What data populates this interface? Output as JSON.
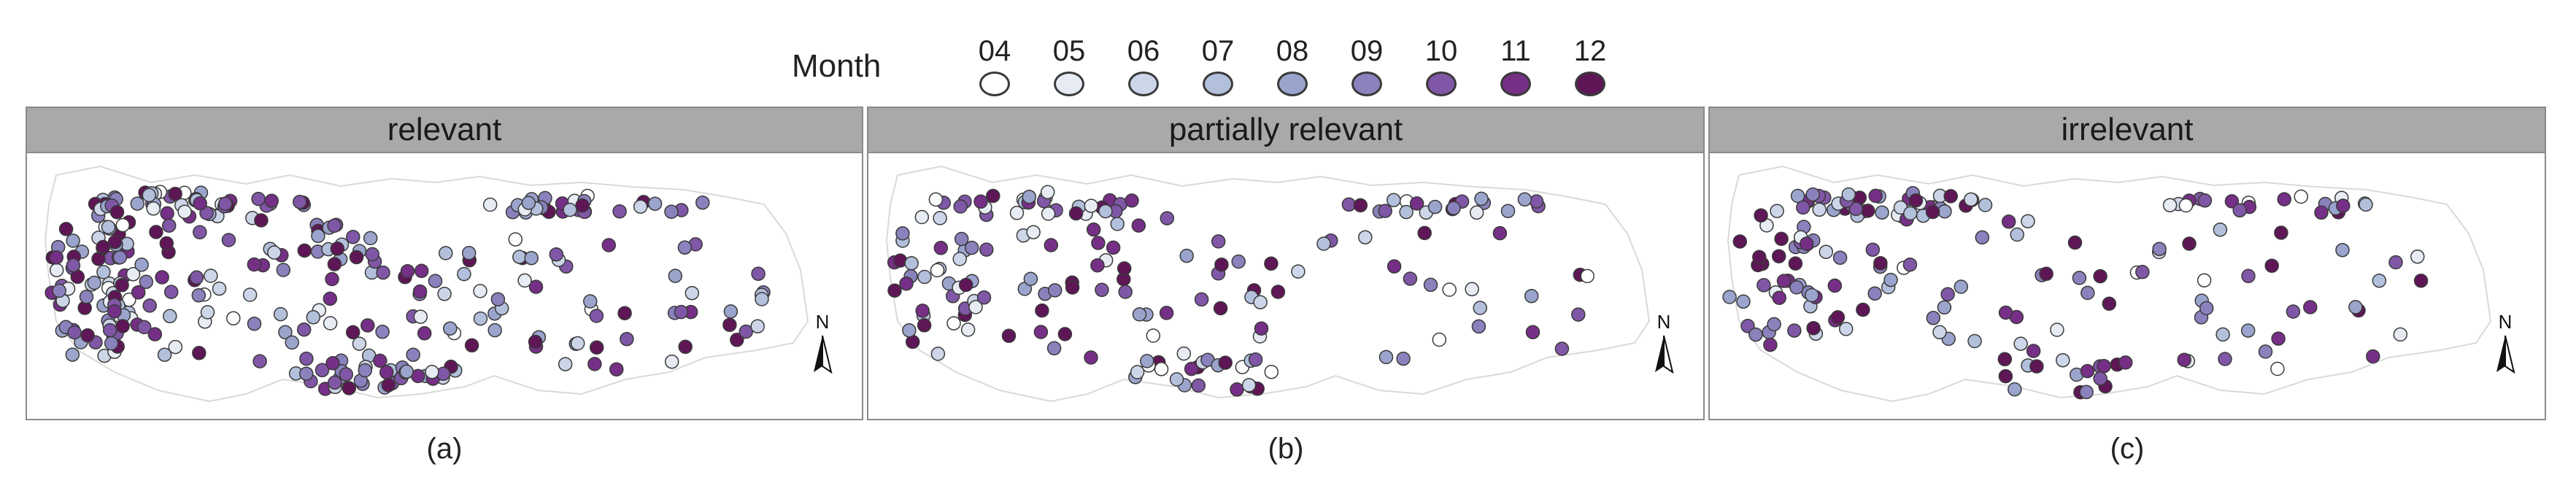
{
  "legend": {
    "title": "Month",
    "items": [
      {
        "label": "04",
        "color": "#ffffff"
      },
      {
        "label": "05",
        "color": "#e7ecf4"
      },
      {
        "label": "06",
        "color": "#cdd6e8"
      },
      {
        "label": "07",
        "color": "#b3c0dc"
      },
      {
        "label": "08",
        "color": "#9aa4cc"
      },
      {
        "label": "09",
        "color": "#8a82bc"
      },
      {
        "label": "10",
        "color": "#8057a6"
      },
      {
        "label": "11",
        "color": "#762f86"
      },
      {
        "label": "12",
        "color": "#5e1656"
      }
    ]
  },
  "panels": [
    {
      "key": "a",
      "title": "relevant",
      "label": "(a)",
      "density": 330
    },
    {
      "key": "b",
      "title": "partially relevant",
      "label": "(b)",
      "density": 180
    },
    {
      "key": "c",
      "title": "irrelevant",
      "label": "(c)",
      "density": 190
    }
  ],
  "north_arrow": {
    "letter": "N"
  },
  "colors": {
    "outline": "#d9d9d9",
    "header": "#a9a9a9",
    "dot_stroke": "#3a3a3a"
  }
}
